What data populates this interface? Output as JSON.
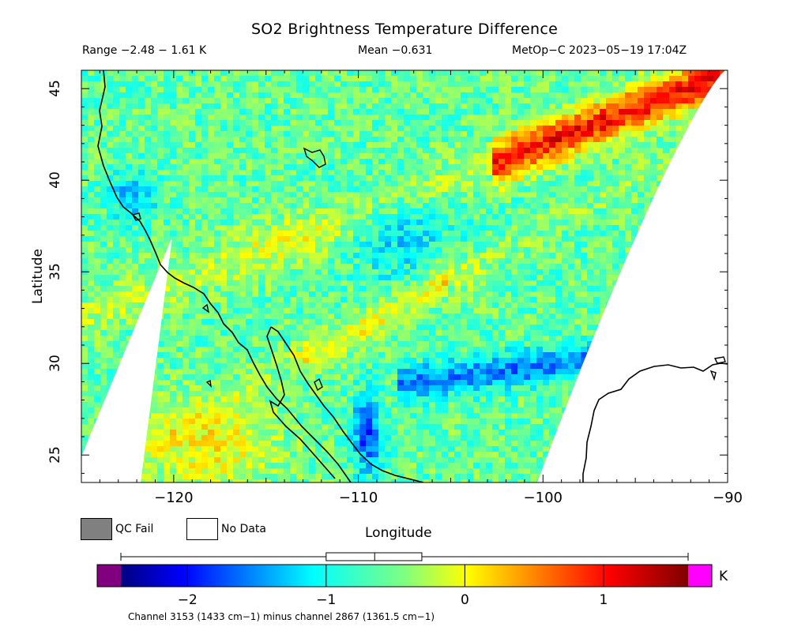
{
  "header": {
    "title": "SO2 Brightness Temperature Difference",
    "range": "Range −2.48 − 1.61 K",
    "mean": "Mean −0.631",
    "satellite": "MetOp−C 2023−05−19 17:04Z"
  },
  "axes": {
    "x_label": "Longitude",
    "y_label": "Latitude",
    "x_ticks": [
      "−120",
      "−110",
      "−100",
      "−90"
    ],
    "x_tick_values": [
      -120,
      -110,
      -100,
      -90
    ],
    "y_ticks": [
      "25",
      "30",
      "35",
      "40",
      "45"
    ],
    "y_tick_values": [
      25,
      30,
      35,
      40,
      45
    ],
    "lon_range": [
      -125,
      -90
    ],
    "lat_range": [
      23.5,
      46
    ]
  },
  "legend": {
    "qc_fail_label": "QC Fail",
    "qc_fail_color": "#808080",
    "no_data_label": "No Data",
    "no_data_color": "#ffffff"
  },
  "colorbar": {
    "unit": "K",
    "ticks": [
      "−2",
      "−1",
      "0",
      "1"
    ],
    "tick_values": [
      -2,
      -1,
      0,
      1
    ],
    "range": [
      -2.48,
      1.61
    ],
    "under_color": "#800080",
    "over_color": "#ff00ff",
    "boxplot": {
      "min": -2.48,
      "q1": -1.0,
      "median": -0.65,
      "q3": -0.31,
      "max": 1.61
    }
  },
  "caption": "Channel 3153 (1433 cm−1) minus channel 2867 (1361.5 cm−1)"
}
